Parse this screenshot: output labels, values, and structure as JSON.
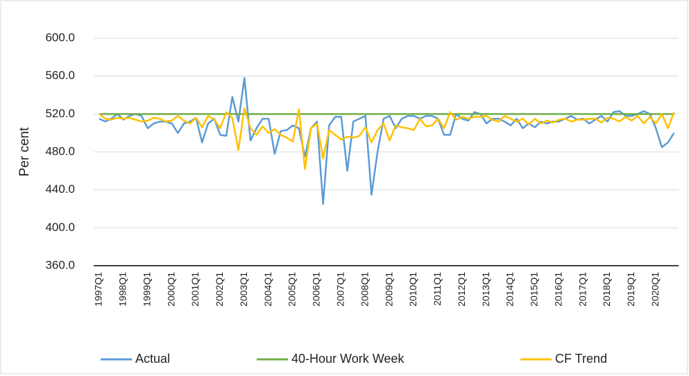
{
  "chart_data": {
    "type": "line",
    "y_label": "Per cent",
    "categories": [
      "1997Q1",
      null,
      null,
      null,
      "1998Q1",
      null,
      null,
      null,
      "1999Q1",
      null,
      null,
      null,
      "2000Q1",
      null,
      null,
      null,
      "2001Q1",
      null,
      null,
      null,
      "2002Q1",
      null,
      null,
      null,
      "2003Q1",
      null,
      null,
      null,
      "2004Q1",
      null,
      null,
      null,
      "2005Q1",
      null,
      null,
      null,
      "2006Q1",
      null,
      null,
      null,
      "2007Q1",
      null,
      null,
      null,
      "2008Q1",
      null,
      null,
      null,
      "2009Q1",
      null,
      null,
      null,
      "2010Q1",
      null,
      null,
      null,
      "2011Q1",
      null,
      null,
      null,
      "2012Q1",
      null,
      null,
      null,
      "2013Q1",
      null,
      null,
      null,
      "2014Q1",
      null,
      null,
      null,
      "2015Q1",
      null,
      null,
      null,
      "2016Q1",
      null,
      null,
      null,
      "2017Q1",
      null,
      null,
      null,
      "2018Q1",
      null,
      null,
      null,
      "2019Q1",
      null,
      null,
      null,
      "2020Q1",
      null,
      null,
      null
    ],
    "series": [
      {
        "name": "Actual",
        "color": "#5b9bd5",
        "values": [
          515,
          512,
          515,
          520,
          514,
          518,
          520,
          518,
          505,
          510,
          512,
          512,
          510,
          500,
          510,
          512,
          516,
          490,
          510,
          515,
          498,
          497,
          538,
          512,
          558,
          492,
          505,
          515,
          515,
          478,
          502,
          503,
          508,
          505,
          475,
          505,
          512,
          425,
          508,
          517,
          517,
          460,
          512,
          515,
          518,
          435,
          480,
          515,
          518,
          505,
          515,
          518,
          518,
          515,
          518,
          518,
          515,
          498,
          498,
          520,
          515,
          513,
          522,
          520,
          510,
          515,
          515,
          512,
          508,
          515,
          505,
          510,
          506,
          512,
          510,
          512,
          512,
          515,
          518,
          514,
          515,
          510,
          514,
          518,
          512,
          522,
          523,
          518,
          518,
          520,
          523,
          520,
          505,
          485,
          490,
          500
        ]
      },
      {
        "name": "40-Hour Work Week",
        "color": "#70ad47",
        "values": [
          520,
          520,
          520,
          520,
          520,
          520,
          520,
          520,
          520,
          520,
          520,
          520,
          520,
          520,
          520,
          520,
          520,
          520,
          520,
          520,
          520,
          520,
          520,
          520,
          520,
          520,
          520,
          520,
          520,
          520,
          520,
          520,
          520,
          520,
          520,
          520,
          520,
          520,
          520,
          520,
          520,
          520,
          520,
          520,
          520,
          520,
          520,
          520,
          520,
          520,
          520,
          520,
          520,
          520,
          520,
          520,
          520,
          520,
          520,
          520,
          520,
          520,
          520,
          520,
          520,
          520,
          520,
          520,
          520,
          520,
          520,
          520,
          520,
          520,
          520,
          520,
          520,
          520,
          520,
          520,
          520,
          520,
          520,
          520,
          520,
          520,
          520,
          520,
          520,
          520,
          520,
          520,
          520,
          520,
          520,
          520
        ]
      },
      {
        "name": "CF Trend",
        "color": "#ffc000",
        "values": [
          520,
          515,
          514,
          516,
          515,
          516,
          514,
          512,
          513,
          516,
          515,
          512,
          513,
          518,
          513,
          510,
          516,
          506,
          518,
          514,
          505,
          522,
          516,
          482,
          526,
          505,
          498,
          507,
          500,
          504,
          498,
          495,
          491,
          525,
          462,
          505,
          510,
          473,
          503,
          498,
          493,
          496,
          495,
          497,
          506,
          490,
          503,
          510,
          492,
          508,
          506,
          505,
          503,
          515,
          507,
          508,
          515,
          505,
          522,
          514,
          517,
          515,
          517,
          517,
          518,
          514,
          512,
          518,
          515,
          512,
          515,
          509,
          515,
          510,
          513,
          511,
          514,
          515,
          512,
          514,
          514,
          515,
          515,
          511,
          516,
          515,
          512,
          517,
          513,
          518,
          510,
          517,
          510,
          520,
          505,
          522
        ]
      }
    ],
    "ylim": [
      360,
      600
    ],
    "yticks": [
      {
        "value": 360,
        "label": "360.0"
      },
      {
        "value": 400,
        "label": "400.0"
      },
      {
        "value": 440,
        "label": "440.0"
      },
      {
        "value": 480,
        "label": "480.0"
      },
      {
        "value": 520,
        "label": "520.0"
      },
      {
        "value": 560,
        "label": "560.0"
      },
      {
        "value": 600,
        "label": "600.0"
      }
    ],
    "grid": true,
    "legend": "bottom"
  }
}
